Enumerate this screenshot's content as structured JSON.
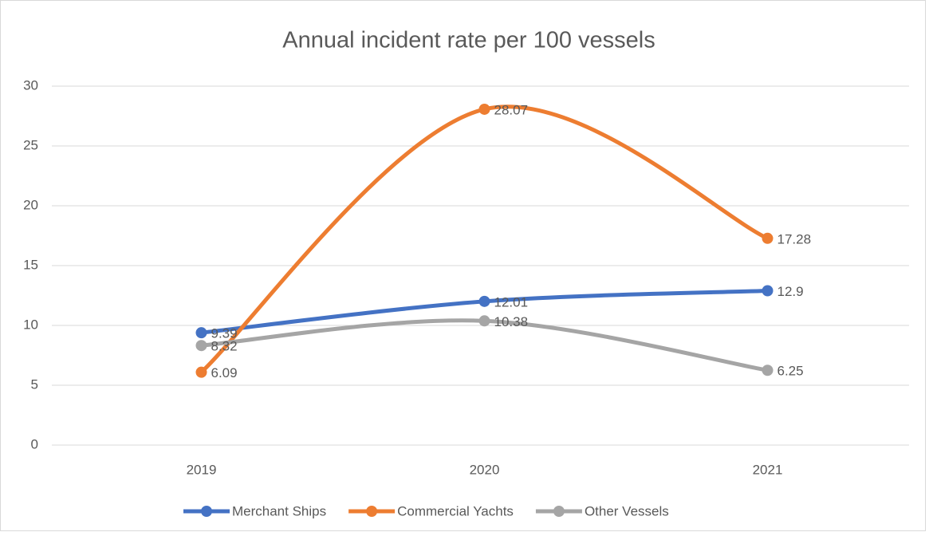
{
  "chart_data": {
    "type": "line",
    "title": "Annual incident rate per 100 vessels",
    "categories": [
      "2019",
      "2020",
      "2021"
    ],
    "series": [
      {
        "name": "Merchant Ships",
        "color": "#4472c4",
        "values": [
          9.39,
          12.01,
          12.9
        ]
      },
      {
        "name": "Commercial Yachts",
        "color": "#ed7d31",
        "values": [
          6.09,
          28.07,
          17.28
        ]
      },
      {
        "name": "Other Vessels",
        "color": "#a5a5a5",
        "values": [
          8.32,
          10.38,
          6.25
        ]
      }
    ],
    "ylim": [
      0,
      30
    ],
    "yticks": [
      0,
      5,
      10,
      15,
      20,
      25,
      30
    ],
    "grid": true,
    "smooth": true,
    "legend": "bottom"
  }
}
